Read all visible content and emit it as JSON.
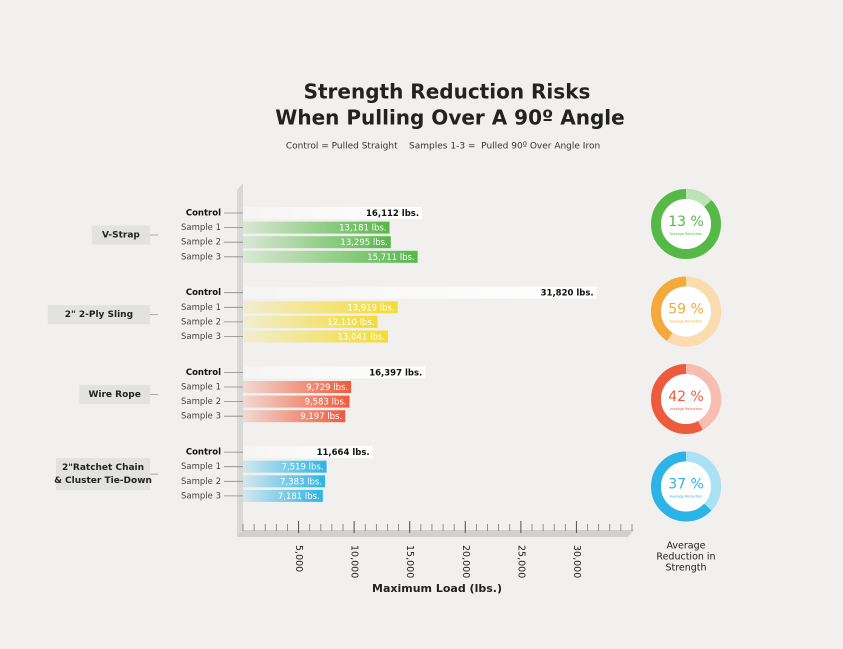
{
  "chart_data": {
    "type": "bar",
    "orientation": "horizontal",
    "title": [
      "Strength Reduction Risks",
      "When Pulling Over A 90º Angle"
    ],
    "subtitle": "Control = Pulled Straight    Samples 1-3 =  Pulled 90º Over Angle Iron",
    "xlabel": "Maximum Load (lbs.)",
    "xlim": [
      0,
      35000
    ],
    "xticks": [
      {
        "value": 5000,
        "label": "5,000"
      },
      {
        "value": 10000,
        "label": "10,000"
      },
      {
        "value": 15000,
        "label": "15,000"
      },
      {
        "value": 20000,
        "label": "20,000"
      },
      {
        "value": 25000,
        "label": "25,000"
      },
      {
        "value": 30000,
        "label": "30,000"
      }
    ],
    "minor_xticks": [
      0,
      1000,
      2000,
      3000,
      4000,
      5000,
      6000,
      7000,
      8000,
      9000,
      10000,
      11000,
      12000,
      13000,
      14000,
      15000,
      16000,
      17000,
      18000,
      19000,
      20000,
      21000,
      22000,
      23000,
      24000,
      25000,
      26000,
      27000,
      28000,
      29000,
      30000,
      31000,
      32000,
      33000,
      34000,
      35000
    ],
    "reduction_title": [
      "Average",
      "Reduction in",
      "Strength"
    ],
    "reduction_caption": "Average Reduction",
    "groups": [
      {
        "name": "V-Strap",
        "color": "#56b847",
        "categories": [
          "Control",
          "Sample 1",
          "Sample 2",
          "Sample 3"
        ],
        "values": [
          16112,
          13181,
          13295,
          15711
        ],
        "value_labels": [
          "16,112 lbs.",
          "13,181 lbs.",
          "13,295 lbs.",
          "15,711 lbs."
        ],
        "reduction": 13,
        "reduction_label": "13 %",
        "donut_color": "#56b847"
      },
      {
        "name": "2\" 2-Ply Sling",
        "color": "#f3dc34",
        "categories": [
          "Control",
          "Sample 1",
          "Sample 2",
          "Sample 3"
        ],
        "values": [
          31820,
          13919,
          12110,
          13041
        ],
        "value_labels": [
          "31,820 lbs.",
          "13,919 lbs.",
          "12,110 lbs.",
          "13,041 lbs."
        ],
        "reduction": 59,
        "reduction_label": "59 %",
        "donut_color": "#f5a93c"
      },
      {
        "name": "Wire Rope",
        "color": "#ee5b3c",
        "categories": [
          "Control",
          "Sample 1",
          "Sample 2",
          "Sample 3"
        ],
        "values": [
          16397,
          9729,
          9583,
          9197
        ],
        "value_labels": [
          "16,397 lbs.",
          "9,729 lbs.",
          "9,583 lbs.",
          "9,197 lbs."
        ],
        "reduction": 42,
        "reduction_label": "42 %",
        "donut_color": "#ee5b3c"
      },
      {
        "name": [
          "2\"Ratchet Chain",
          "& Cluster Tie-Down"
        ],
        "color": "#2cb4e6",
        "categories": [
          "Control",
          "Sample 1",
          "Sample 2",
          "Sample 3"
        ],
        "values": [
          11664,
          7519,
          7383,
          7181
        ],
        "value_labels": [
          "11,664 lbs.",
          "7,519 lbs.",
          "7,383 lbs.",
          "7,181 lbs."
        ],
        "reduction": 37,
        "reduction_label": "37 %",
        "donut_color": "#2cb4e6"
      }
    ]
  }
}
